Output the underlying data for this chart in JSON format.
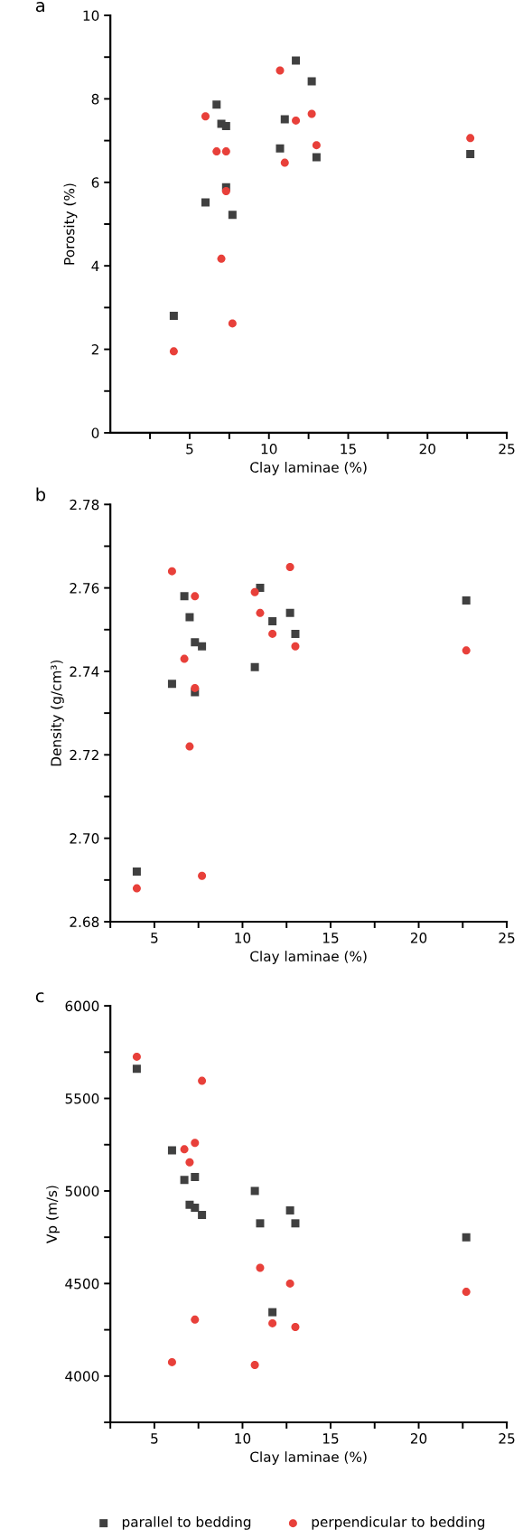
{
  "chart_data": [
    {
      "type": "scatter",
      "title": "a",
      "xlabel": "Clay laminae (%)",
      "ylabel": "Porosity (%)",
      "xlim": [
        0,
        25
      ],
      "ylim": [
        0,
        10
      ],
      "xticks": [
        {
          "value": 2.5,
          "label": null
        },
        5,
        {
          "value": 7.5,
          "label": null
        },
        10,
        {
          "value": 12.5,
          "label": null
        },
        15,
        {
          "value": 17.5,
          "label": null
        },
        20,
        {
          "value": 22.5,
          "label": null
        },
        25
      ],
      "yticks": [
        0,
        {
          "value": 1,
          "label": null
        },
        2,
        {
          "value": 3,
          "label": null
        },
        4,
        {
          "value": 5,
          "label": null
        },
        6,
        {
          "value": 7,
          "label": null
        },
        8,
        {
          "value": 9,
          "label": null
        },
        10
      ],
      "grid": false,
      "legend": "bottom",
      "series": [
        {
          "name": "parallel to bedding",
          "color": "#404040",
          "marker": "square",
          "x": [
            4.0,
            6.0,
            6.7,
            7.0,
            7.3,
            7.3,
            7.7,
            10.7,
            11.0,
            11.7,
            12.7,
            13.0,
            22.7
          ],
          "values": [
            2.8,
            5.52,
            7.86,
            7.4,
            7.35,
            5.88,
            5.22,
            6.81,
            7.51,
            8.92,
            8.42,
            6.6,
            6.68
          ]
        },
        {
          "name": "perpendicular to bedding",
          "color": "#e8403a",
          "marker": "circle",
          "x": [
            4.0,
            7.7,
            7.0,
            7.3,
            6.7,
            7.3,
            6.0,
            10.7,
            11.0,
            11.7,
            12.7,
            13.0,
            22.7
          ],
          "values": [
            1.95,
            2.62,
            4.17,
            5.79,
            6.74,
            6.74,
            7.58,
            8.68,
            6.47,
            7.48,
            7.64,
            6.89,
            7.06
          ]
        }
      ]
    },
    {
      "type": "scatter",
      "title": "b",
      "xlabel": "Clay laminae (%)",
      "ylabel": "Density (g/cm³)",
      "xlim": [
        2.5,
        25
      ],
      "ylim": [
        2.68,
        2.78
      ],
      "xticks": [
        {
          "value": 2.5,
          "label": null
        },
        5,
        {
          "value": 7.5,
          "label": null
        },
        10,
        {
          "value": 12.5,
          "label": null
        },
        15,
        {
          "value": 17.5,
          "label": null
        },
        20,
        {
          "value": 22.5,
          "label": null
        },
        25
      ],
      "yticks": [
        {
          "value": 2.68,
          "label": "2.68"
        },
        {
          "value": 2.69,
          "label": null
        },
        {
          "value": 2.7,
          "label": "2.70"
        },
        {
          "value": 2.71,
          "label": null
        },
        {
          "value": 2.72,
          "label": "2.72"
        },
        {
          "value": 2.73,
          "label": null
        },
        {
          "value": 2.74,
          "label": "2.74"
        },
        {
          "value": 2.75,
          "label": null
        },
        {
          "value": 2.76,
          "label": "2.76"
        },
        {
          "value": 2.77,
          "label": null
        },
        {
          "value": 2.78,
          "label": "2.78"
        }
      ],
      "grid": false,
      "legend": false,
      "series": [
        {
          "color": "#404040",
          "marker": "square",
          "x": [
            4.0,
            6.0,
            6.7,
            7.0,
            7.3,
            7.3,
            7.7,
            10.7,
            11.0,
            11.7,
            12.7,
            13.0,
            22.7
          ],
          "values": [
            2.692,
            2.737,
            2.758,
            2.753,
            2.747,
            2.735,
            2.746,
            2.741,
            2.76,
            2.752,
            2.754,
            2.749,
            2.757
          ]
        },
        {
          "color": "#e8403a",
          "marker": "circle",
          "x": [
            4.0,
            7.7,
            7.0,
            7.3,
            6.7,
            6.0,
            7.3,
            10.7,
            11.0,
            11.7,
            12.7,
            13.0,
            22.7
          ],
          "values": [
            2.688,
            2.691,
            2.722,
            2.736,
            2.743,
            2.764,
            2.758,
            2.759,
            2.754,
            2.749,
            2.765,
            2.746,
            2.745
          ]
        }
      ]
    },
    {
      "type": "scatter",
      "title": "c",
      "xlabel": "Clay laminae (%)",
      "ylabel": "Vp (m/s)",
      "xlim": [
        2.5,
        25
      ],
      "ylim": [
        3750,
        6000
      ],
      "xticks": [
        {
          "value": 2.5,
          "label": null
        },
        5,
        {
          "value": 7.5,
          "label": null
        },
        10,
        {
          "value": 12.5,
          "label": null
        },
        15,
        {
          "value": 17.5,
          "label": null
        },
        20,
        {
          "value": 22.5,
          "label": null
        },
        25
      ],
      "yticks": [
        {
          "value": 3750,
          "label": null
        },
        4000,
        {
          "value": 4250,
          "label": null
        },
        4500,
        {
          "value": 4750,
          "label": null
        },
        5000,
        {
          "value": 5250,
          "label": null
        },
        5500,
        {
          "value": 5750,
          "label": null
        },
        6000
      ],
      "grid": false,
      "legend": false,
      "series": [
        {
          "color": "#404040",
          "marker": "square",
          "x": [
            4.0,
            6.0,
            6.7,
            7.3,
            7.0,
            7.3,
            7.7,
            10.7,
            11.0,
            11.7,
            12.7,
            13.0,
            22.7
          ],
          "values": [
            5660,
            5220,
            5060,
            5075,
            4925,
            4910,
            4870,
            5000,
            4825,
            4345,
            4895,
            4825,
            4750
          ]
        },
        {
          "color": "#e8403a",
          "marker": "circle",
          "x": [
            4.0,
            7.7,
            7.3,
            6.7,
            7.0,
            11.0,
            12.7,
            22.7,
            7.3,
            11.7,
            13.0,
            6.0,
            10.7
          ],
          "values": [
            5725,
            5595,
            5260,
            5225,
            5155,
            4585,
            4500,
            4455,
            4305,
            4285,
            4265,
            4075,
            4060
          ]
        }
      ]
    }
  ]
}
